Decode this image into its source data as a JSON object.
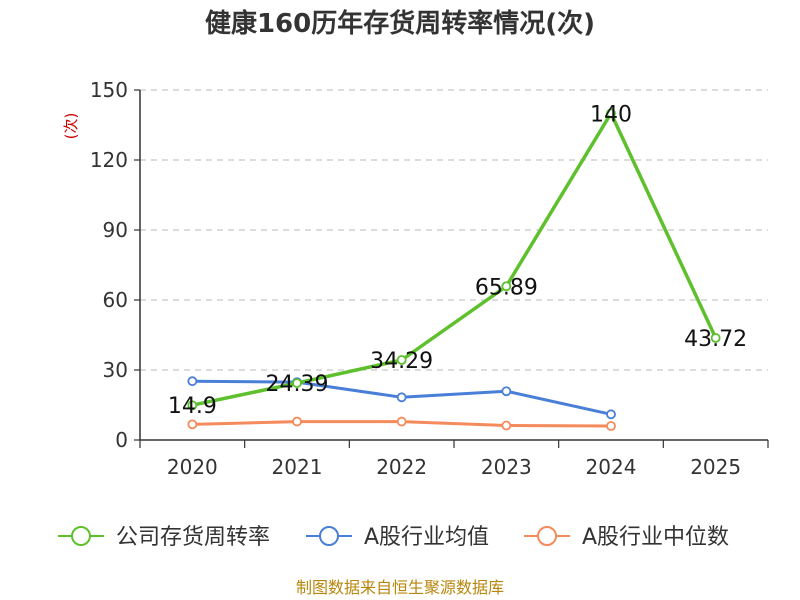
{
  "chart_data": {
    "type": "line",
    "title": "健康160历年存货周转率情况(次)",
    "ylabel": "(次)",
    "xlabel": "",
    "categories": [
      "2020",
      "2021",
      "2022",
      "2023",
      "2024",
      "2025"
    ],
    "ylim": [
      0,
      150
    ],
    "yticks": [
      0,
      30,
      60,
      90,
      120,
      150
    ],
    "grid": true,
    "legend_position": "bottom",
    "series": [
      {
        "name": "公司存货周转率",
        "color": "#5dc02c",
        "values": [
          14.9,
          24.39,
          34.29,
          65.89,
          140,
          43.72
        ],
        "labels": [
          "14.9",
          "24.39",
          "34.29",
          "65.89",
          "140",
          "43.72"
        ]
      },
      {
        "name": "A股行业均值",
        "color": "#4a7fd8",
        "values": [
          25.2,
          24.8,
          18.3,
          20.9,
          11.0,
          null
        ]
      },
      {
        "name": "A股行业中位数",
        "color": "#f58a5c",
        "values": [
          6.7,
          7.9,
          7.9,
          6.2,
          6.0,
          null
        ]
      }
    ]
  },
  "source_text": "制图数据来自恒生聚源数据库"
}
